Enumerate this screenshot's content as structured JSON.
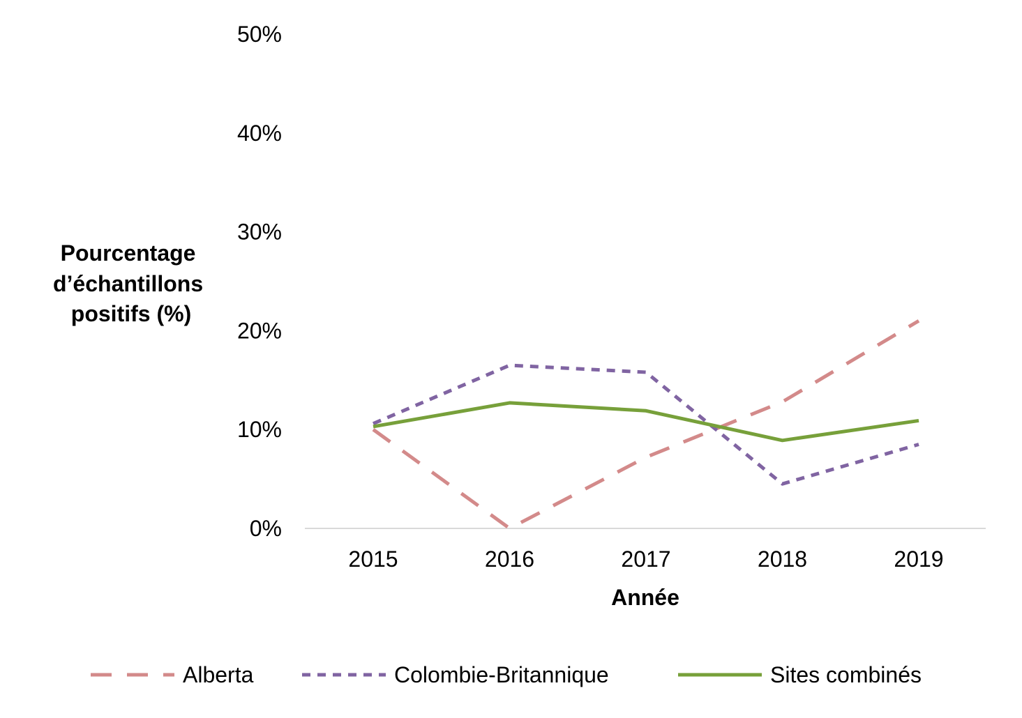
{
  "chart_data": {
    "type": "line",
    "title": "",
    "xlabel": "Année",
    "ylabel_lines": [
      "Pourcentage",
      "d’échantillons",
      "positifs (%)"
    ],
    "x": [
      "2015",
      "2016",
      "2017",
      "2018",
      "2019"
    ],
    "yticks": [
      0,
      10,
      20,
      30,
      40,
      50
    ],
    "ytick_labels": [
      "0%",
      "10%",
      "20%",
      "30%",
      "40%",
      "50%"
    ],
    "ylim": [
      0,
      50
    ],
    "grid": false,
    "legend_position": "bottom",
    "series": [
      {
        "name": "Alberta",
        "values": [
          10.0,
          0.0,
          7.2,
          12.8,
          21.0
        ],
        "color": "#D38A8A",
        "style": "long-dash"
      },
      {
        "name": "Colombie-Britannique",
        "values": [
          10.6,
          16.5,
          15.8,
          4.5,
          8.5
        ],
        "color": "#8064A2",
        "style": "short-dash"
      },
      {
        "name": "Sites combinés",
        "values": [
          10.3,
          12.7,
          11.9,
          8.9,
          10.9
        ],
        "color": "#77A03A",
        "style": "solid"
      }
    ]
  }
}
